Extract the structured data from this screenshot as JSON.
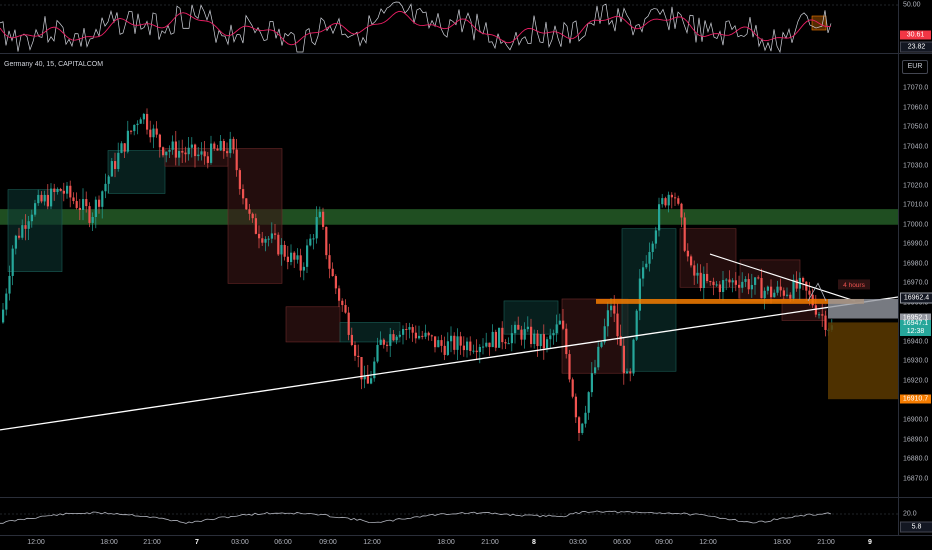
{
  "symbol_title": "Germany 40, 15, CAPITALCOM",
  "currency": "EUR",
  "price_axis": {
    "ticks": [
      "17070.0",
      "17060.0",
      "17050.0",
      "17040.0",
      "17030.0",
      "17020.0",
      "17010.0",
      "17000.0",
      "16990.0",
      "16980.0",
      "16970.0",
      "16960.0",
      "16950.0",
      "16940.0",
      "16930.0",
      "16920.0",
      "16910.0",
      "16900.0",
      "16890.0",
      "16880.0",
      "16870.0"
    ],
    "tick_values": [
      17070,
      17060,
      17050,
      17040,
      17030,
      17020,
      17010,
      17000,
      16990,
      16980,
      16970,
      16960,
      16950,
      16940,
      16930,
      16920,
      16910,
      16900,
      16890,
      16880,
      16870
    ],
    "label_1": "16962.4",
    "label_2": "16952.1",
    "label_3": "16947.1",
    "label_3_sub": "12:38",
    "label_4": "16910.7",
    "colors": {
      "label_1": "#ffffff",
      "label_2": "#9598a1",
      "label_3": "#26a69a",
      "label_4": "#f57c00"
    }
  },
  "upper_indicator": {
    "level": "50.00",
    "value_1": "30.61",
    "value_2": "23.82"
  },
  "lower_indicator": {
    "level": "20.0",
    "value": "5.8"
  },
  "time_axis": [
    "12:00",
    "18:00",
    "21:00",
    "7",
    "03:00",
    "06:00",
    "09:00",
    "12:00",
    "18:00",
    "21:00",
    "8",
    "03:00",
    "06:00",
    "09:00",
    "12:00",
    "18:00",
    "21:00",
    "9"
  ],
  "time_axis_bold": [
    false,
    false,
    false,
    true,
    false,
    false,
    false,
    false,
    false,
    false,
    true,
    false,
    false,
    false,
    false,
    false,
    false,
    true
  ],
  "annotation": "4 hours",
  "colors": {
    "up": "#26a69a",
    "down": "#ef5350",
    "zone": "#388e3c",
    "position": "#f57c00",
    "trendline": "#ffffff",
    "rsi": "#e91e63"
  }
}
